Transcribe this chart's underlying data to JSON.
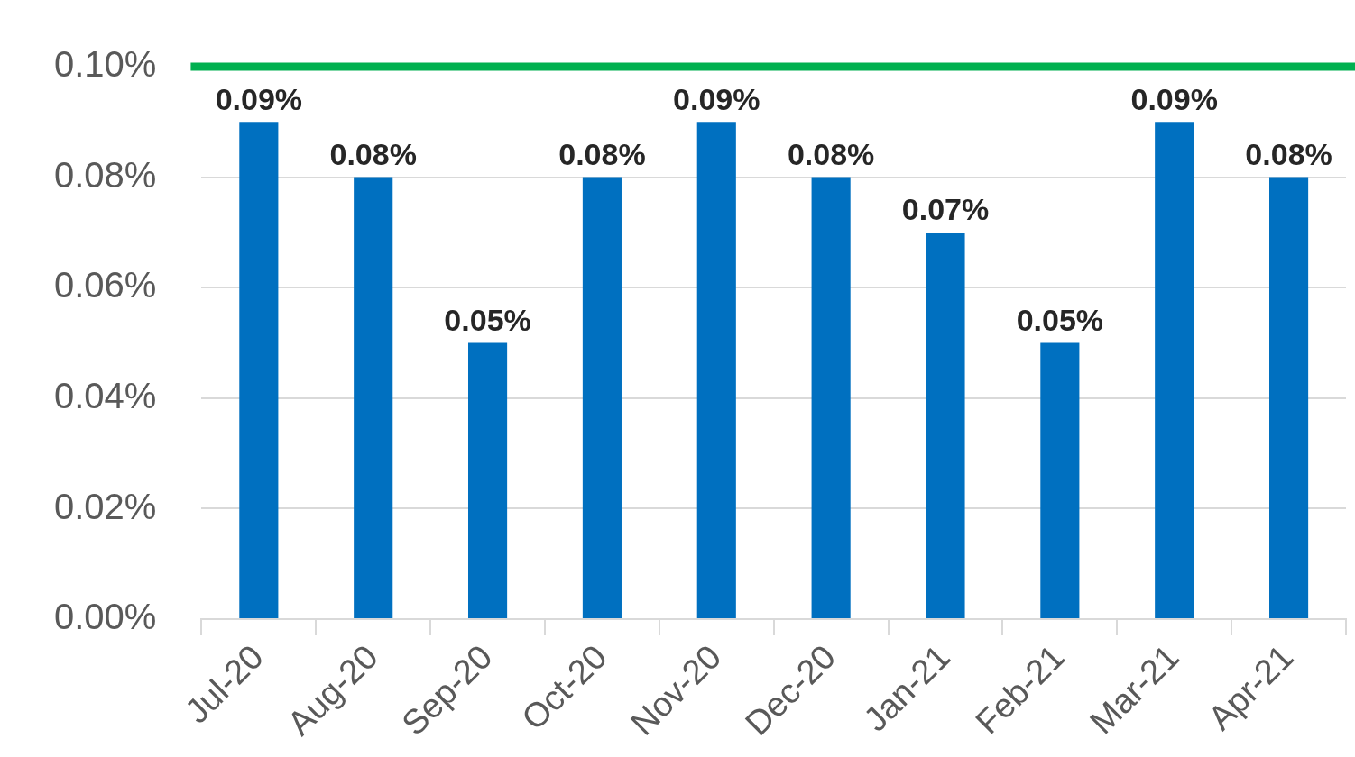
{
  "chart_data": {
    "type": "bar",
    "categories": [
      "Jul-20",
      "Aug-20",
      "Sep-20",
      "Oct-20",
      "Nov-20",
      "Dec-20",
      "Jan-21",
      "Feb-21",
      "Mar-21",
      "Apr-21"
    ],
    "values": [
      0.09,
      0.08,
      0.05,
      0.08,
      0.09,
      0.08,
      0.07,
      0.05,
      0.09,
      0.08
    ],
    "value_labels": [
      "0.09%",
      "0.08%",
      "0.05%",
      "0.08%",
      "0.09%",
      "0.08%",
      "0.07%",
      "0.05%",
      "0.09%",
      "0.08%"
    ],
    "color": "#0070c0",
    "ylim": [
      0,
      0.1
    ],
    "yticks": [
      {
        "value": 0,
        "label": "0.00%"
      },
      {
        "value": 0.02,
        "label": "0.02%"
      },
      {
        "value": 0.04,
        "label": "0.04%"
      },
      {
        "value": 0.06,
        "label": "0.06%"
      },
      {
        "value": 0.08,
        "label": "0.08%"
      },
      {
        "value": 0.1,
        "label": "0.10%"
      }
    ],
    "grid": "y",
    "ref_lines": [
      {
        "axis": "y",
        "value": 0.1,
        "color": "#00b050"
      }
    ]
  }
}
